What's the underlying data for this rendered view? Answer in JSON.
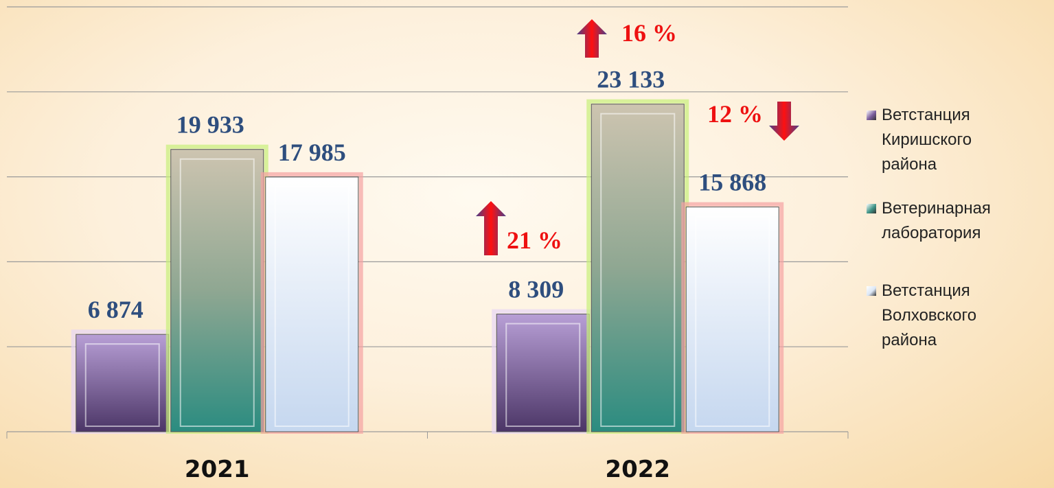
{
  "chart_data": {
    "type": "bar",
    "categories": [
      "2021",
      "2022"
    ],
    "series": [
      {
        "name": "Ветстанция Киришского района",
        "color": "#7a5c9c",
        "values": [
          6874,
          8309
        ],
        "value_labels": [
          "6 874",
          "8 309"
        ]
      },
      {
        "name": "Ветеринарная лаборатория",
        "color": "#3f9487",
        "values": [
          19933,
          23133
        ],
        "value_labels": [
          "19 933",
          "23 133"
        ]
      },
      {
        "name": "Ветстанция Волховского района",
        "color": "#dbe6f5",
        "values": [
          17985,
          15868
        ],
        "value_labels": [
          "17 985",
          "15 868"
        ]
      }
    ],
    "ylim": [
      0,
      30000
    ],
    "yticks": [
      0,
      6000,
      12000,
      18000,
      24000,
      30000
    ],
    "grid": true,
    "annotations": [
      {
        "text": "16 %"
      },
      {
        "text": "12 %"
      },
      {
        "text": "21 %"
      }
    ]
  }
}
